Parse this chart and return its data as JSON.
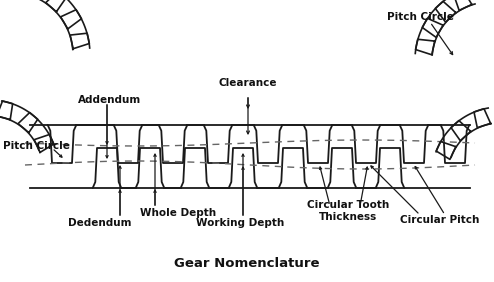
{
  "title": "Gear Nomenclature",
  "background_color": "#ffffff",
  "line_color": "#1a1a1a",
  "dashed_color": "#555555",
  "labels": {
    "pitch_circle_top": "Pitch Circle",
    "pitch_circle_left": "Pitch Circle",
    "addendum": "Addendum",
    "clearance": "Clearance",
    "whole_depth": "Whole Depth",
    "dedendum": "Dedendum",
    "working_depth": "Working Depth",
    "circular_tooth_thickness": "Circular Tooth\nThickness",
    "circular_pitch": "Circular Pitch",
    "title": "Gear Nomenclature"
  },
  "figsize": [
    4.94,
    2.82
  ],
  "dpi": 100
}
